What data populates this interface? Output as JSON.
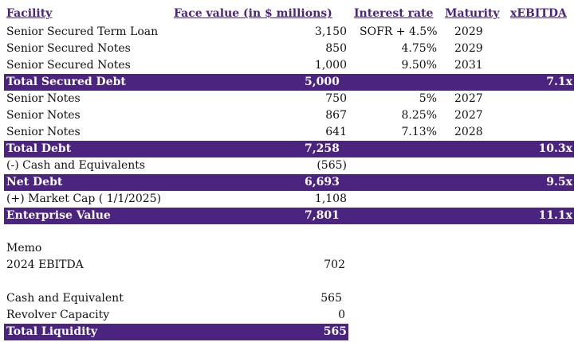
{
  "colors": {
    "accent": "#4b2480"
  },
  "headers": {
    "facility": "Facility",
    "face_value": "Face value (in $ millions)",
    "interest_rate": "Interest rate",
    "maturity": "Maturity",
    "xebitda": "xEBITDA"
  },
  "rows": [
    {
      "label": "Senior Secured Term Loan",
      "face": "3,150",
      "rate": "SOFR + 4.5%",
      "maturity": "2029",
      "xebitda": ""
    },
    {
      "label": "Senior Secured Notes",
      "face": "850",
      "rate": "4.75%",
      "maturity": "2029",
      "xebitda": ""
    },
    {
      "label": "Senior Secured Notes",
      "face": "1,000",
      "rate": "9.50%",
      "maturity": "2031",
      "xebitda": ""
    },
    {
      "label": "Total Secured Debt",
      "face": "5,000",
      "rate": "",
      "maturity": "",
      "xebitda": "7.1x"
    },
    {
      "label": "Senior Notes",
      "face": "750",
      "rate": "5%",
      "maturity": "2027",
      "xebitda": ""
    },
    {
      "label": "Senior Notes",
      "face": "867",
      "rate": "8.25%",
      "maturity": "2027",
      "xebitda": ""
    },
    {
      "label": "Senior Notes",
      "face": "641",
      "rate": "7.13%",
      "maturity": "2028",
      "xebitda": ""
    },
    {
      "label": "Total Debt",
      "face": "7,258",
      "rate": "",
      "maturity": "",
      "xebitda": "10.3x"
    },
    {
      "label": "(-) Cash and Equivalents",
      "face": "(565)",
      "rate": "",
      "maturity": "",
      "xebitda": ""
    },
    {
      "label": "Net Debt",
      "face": "6,693",
      "rate": "",
      "maturity": "",
      "xebitda": "9.5x"
    },
    {
      "label": "(+) Market Cap ( 1/1/2025)",
      "face": "1,108",
      "rate": "",
      "maturity": "",
      "xebitda": ""
    },
    {
      "label": "Enterprise Value",
      "face": "7,801",
      "rate": "",
      "maturity": "",
      "xebitda": "11.1x"
    }
  ],
  "memo": {
    "title": "Memo",
    "ebitda_label": "2024 EBITDA",
    "ebitda_value": "702",
    "cash_label": "Cash and Equivalent",
    "cash_value": "565",
    "revolver_label": "Revolver Capacity",
    "revolver_value": "0",
    "liquidity_label": "Total Liquidity",
    "liquidity_value": "565"
  }
}
